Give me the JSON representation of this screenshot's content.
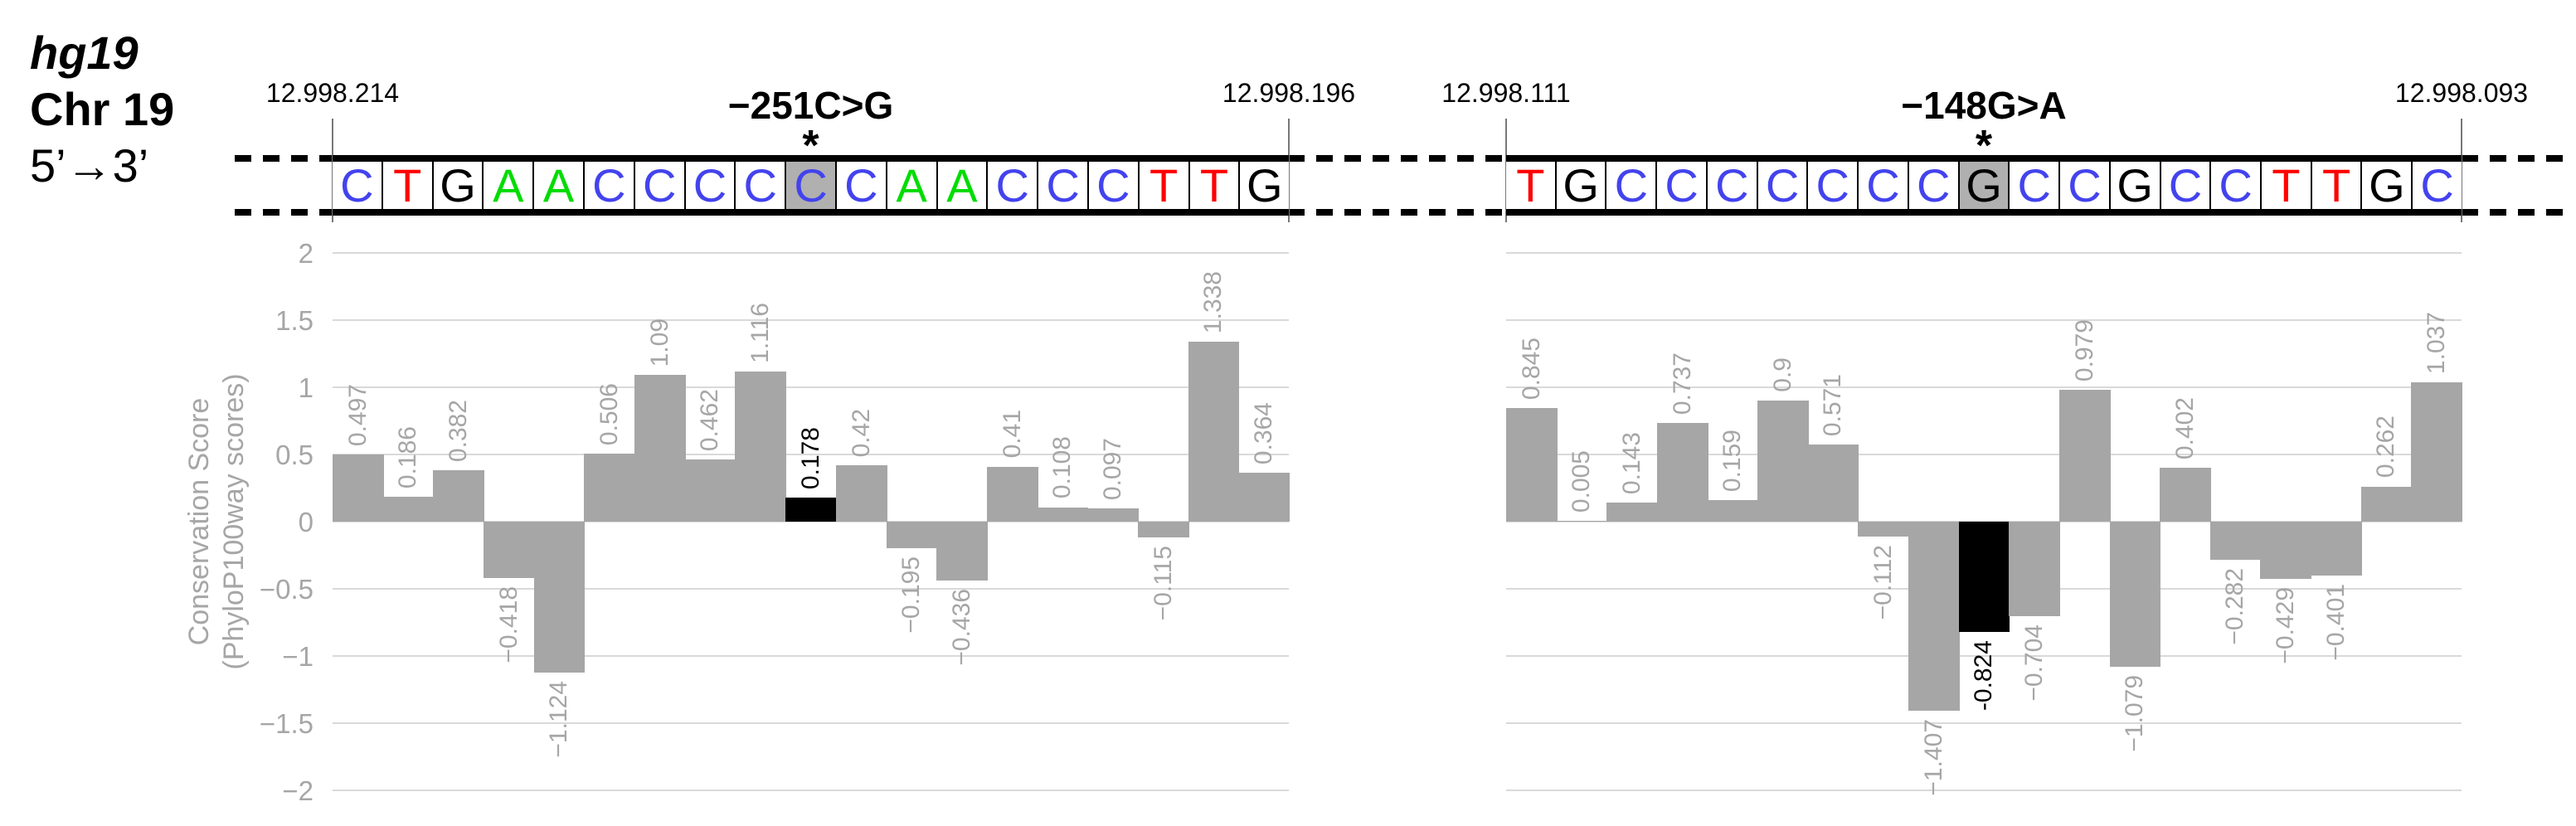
{
  "figure": {
    "assembly": "hg19",
    "chromosome": "Chr 19",
    "strand_direction": "5’→3’"
  },
  "base_colors": {
    "A": "#00DC00",
    "C": "#4343EE",
    "G": "#000000",
    "T": "#FF0000"
  },
  "colors": {
    "bar": "#A6A6A6",
    "highlight_bar": "#000000",
    "gridline": "#D9D9D9",
    "axis_text": "#A6A6A6",
    "variant_cell_background": "#B0B0B0",
    "sequence_border": "#000000"
  },
  "panels": [
    {
      "coord_start": "12.998.214",
      "coord_end": "12.998.196",
      "variant_label": "−251C>G",
      "variant_marker": "*",
      "variant_index": 9,
      "sequence": [
        "C",
        "T",
        "G",
        "A",
        "A",
        "C",
        "C",
        "C",
        "C",
        "C",
        "C",
        "A",
        "A",
        "C",
        "C",
        "C",
        "T",
        "T",
        "G"
      ]
    },
    {
      "coord_start": "12.998.111",
      "coord_end": "12.998.093",
      "variant_label": "−148G>A",
      "variant_marker": "*",
      "variant_index": 9,
      "sequence": [
        "T",
        "G",
        "C",
        "C",
        "C",
        "C",
        "C",
        "C",
        "C",
        "G",
        "C",
        "C",
        "G",
        "C",
        "C",
        "T",
        "T",
        "G",
        "C"
      ]
    }
  ],
  "chart_data": [
    {
      "type": "bar",
      "title": "−251C>G",
      "categories": [
        "C",
        "T",
        "G",
        "A",
        "A",
        "C",
        "C",
        "C",
        "C",
        "C",
        "C",
        "A",
        "A",
        "C",
        "C",
        "C",
        "T",
        "T",
        "G"
      ],
      "values": [
        0.497,
        0.186,
        0.382,
        -0.418,
        -1.124,
        0.506,
        1.09,
        0.462,
        1.116,
        0.178,
        0.42,
        -0.195,
        -0.436,
        0.41,
        0.108,
        0.097,
        -0.115,
        1.338,
        0.364
      ],
      "labels": [
        "0.497",
        "0.186",
        "0.382",
        "−0.418",
        "−1.124",
        "0.506",
        "1.09",
        "0.462",
        "1.116",
        "0.178",
        "0.42",
        "−0.195",
        "−0.436",
        "0.41",
        "0.108",
        "0.097",
        "−0.115",
        "1.338",
        "0.364"
      ],
      "highlight_index": 9,
      "ylabel": [
        "Conservation Score",
        "(PhyloP100way scores)"
      ],
      "ylim": [
        -2,
        2
      ],
      "ytick_step": 0.5,
      "yticks": {
        "values": [
          2,
          1.5,
          1,
          0.5,
          0,
          -0.5,
          -1,
          -1.5,
          -2
        ],
        "labels": [
          "2",
          "1.5",
          "1",
          "0.5",
          "0",
          "−0.5",
          "−1",
          "−1.5",
          "−2"
        ]
      },
      "grid": true,
      "show_y_axis": true,
      "bar_color": "#A6A6A6",
      "highlight_color": "#000000"
    },
    {
      "type": "bar",
      "title": "−148G>A",
      "categories": [
        "T",
        "G",
        "C",
        "C",
        "C",
        "C",
        "C",
        "C",
        "C",
        "G",
        "C",
        "C",
        "G",
        "C",
        "C",
        "T",
        "T",
        "G",
        "C"
      ],
      "values": [
        0.845,
        0.005,
        0.143,
        0.737,
        0.159,
        0.9,
        0.571,
        -0.112,
        -1.407,
        -0.824,
        -0.704,
        0.979,
        -1.079,
        0.402,
        -0.282,
        -0.429,
        -0.401,
        0.262,
        1.037
      ],
      "labels": [
        "0.845",
        "0.005",
        "0.143",
        "0.737",
        "0.159",
        "0.9",
        "0.571",
        "−0.112",
        "−1.407",
        "-0.824",
        "−0.704",
        "0.979",
        "−1.079",
        "0.402",
        "−0.282",
        "−0.429",
        "−0.401",
        "0.262",
        "1.037"
      ],
      "highlight_index": 9,
      "ylabel": [],
      "ylim": [
        -2,
        2
      ],
      "ytick_step": 0.5,
      "yticks": {
        "values": [
          2,
          1.5,
          1,
          0.5,
          0,
          -0.5,
          -1,
          -1.5,
          -2
        ],
        "labels": [
          "2",
          "1.5",
          "1",
          "0.5",
          "0",
          "−0.5",
          "−1",
          "−1.5",
          "−2"
        ]
      },
      "grid": true,
      "show_y_axis": false,
      "bar_color": "#A6A6A6",
      "highlight_color": "#000000"
    }
  ]
}
